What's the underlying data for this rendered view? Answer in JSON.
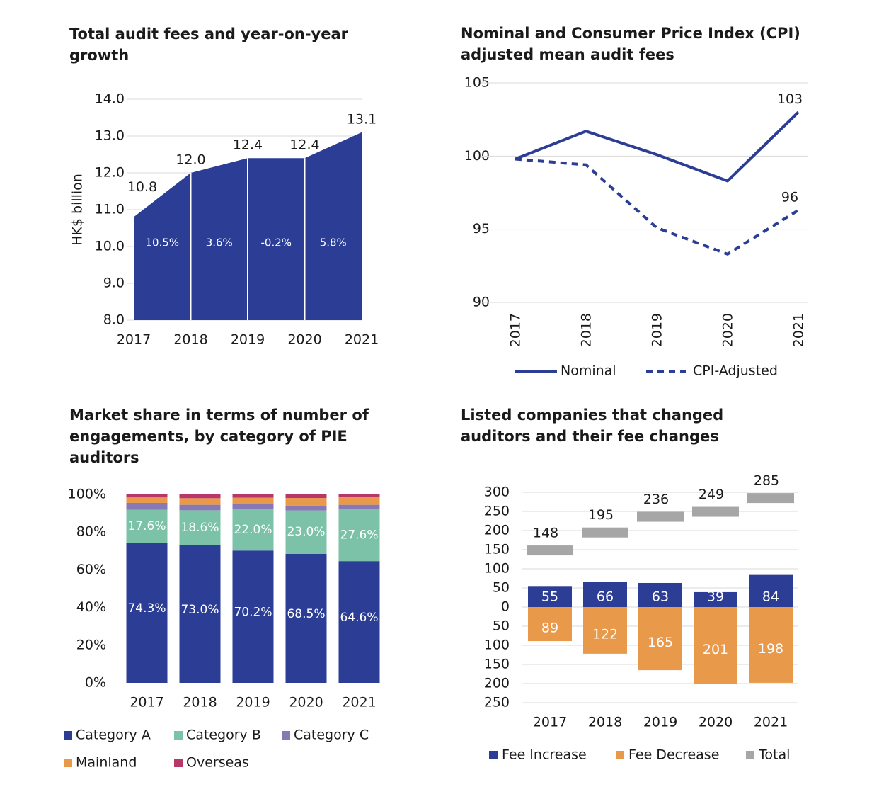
{
  "chart_data": [
    {
      "type": "area",
      "title": "Total audit fees and year-on-year growth",
      "y_label": "HK$ billion",
      "categories": [
        "2017",
        "2018",
        "2019",
        "2020",
        "2021"
      ],
      "values": [
        10.8,
        12,
        12.4,
        12.4,
        13.1
      ],
      "value_labels": [
        "10.8",
        "12.0",
        "12.4",
        "12.4",
        "13.1"
      ],
      "color": "#2b3d94",
      "ylim": [
        8,
        14
      ],
      "yticks": [
        {
          "value": 8,
          "label": "8.0"
        },
        {
          "value": 9,
          "label": "9.0"
        },
        {
          "value": 10,
          "label": "10.0"
        },
        {
          "value": 11,
          "label": "11.0"
        },
        {
          "value": 12,
          "label": "12.0"
        },
        {
          "value": 13,
          "label": "13.0"
        },
        {
          "value": 14,
          "label": "14.0"
        }
      ],
      "grid": true,
      "growth": {
        "values": [
          10.5,
          3.6,
          -0.2,
          5.8
        ],
        "value_labels": [
          "10.5%",
          "3.6%",
          "-0.2%",
          "5.8%"
        ]
      }
    },
    {
      "type": "line",
      "title": "Nominal and Consumer Price Index (CPI) adjusted mean audit fees",
      "categories": [
        "2017",
        "2018",
        "2019",
        "2020",
        "2021"
      ],
      "series": [
        {
          "name": "Nominal",
          "color": "#2b3d94",
          "line_style": "solid",
          "values": [
            99.8,
            101.7,
            100.1,
            98.3,
            103
          ],
          "value_labels": [
            null,
            null,
            null,
            null,
            "103"
          ]
        },
        {
          "name": "CPI-Adjusted",
          "color": "#2b3d94",
          "line_style": "dashed",
          "values": [
            99.8,
            99.4,
            95.1,
            93.3,
            96.3
          ],
          "value_labels": [
            null,
            null,
            null,
            null,
            "96"
          ]
        }
      ],
      "ylim": [
        90,
        105
      ],
      "yticks": [
        90,
        95,
        100,
        105
      ],
      "grid": true,
      "legend": "bottom"
    },
    {
      "type": "stacked_bar",
      "title": "Market share in terms of number of engagements, by category of PIE auditors",
      "categories": [
        "2017",
        "2018",
        "2019",
        "2020",
        "2021"
      ],
      "series": [
        {
          "name": "Category A",
          "color": "#2b3d94",
          "values": [
            74.3,
            73.0,
            70.2,
            68.5,
            64.6
          ],
          "value_labels": [
            "74.3%",
            "73.0%",
            "70.2%",
            "68.5%",
            "64.6%"
          ]
        },
        {
          "name": "Category B",
          "color": "#7bc2a8",
          "values": [
            17.6,
            18.6,
            22.0,
            23.0,
            27.6
          ],
          "value_labels": [
            "17.6%",
            "18.6%",
            "22.0%",
            "23.0%",
            "27.6%"
          ]
        },
        {
          "name": "Category C",
          "color": "#8878b5",
          "values": [
            3.6,
            2.9,
            2.6,
            2.6,
            2.3
          ]
        },
        {
          "name": "Mainland",
          "color": "#e8994a",
          "values": [
            2.9,
            3.5,
            3.5,
            4.0,
            4.0
          ]
        },
        {
          "name": "Overseas",
          "color": "#b8366a",
          "values": [
            1.6,
            2.0,
            1.7,
            1.9,
            1.5
          ]
        }
      ],
      "ylim": [
        0,
        100
      ],
      "yticks": [
        {
          "value": 0,
          "label": "0%"
        },
        {
          "value": 20,
          "label": "20%"
        },
        {
          "value": 40,
          "label": "40%"
        },
        {
          "value": 60,
          "label": "60%"
        },
        {
          "value": 80,
          "label": "80%"
        },
        {
          "value": 100,
          "label": "100%"
        }
      ],
      "grid": false,
      "legend": "bottom"
    },
    {
      "type": "bar",
      "title": "Listed companies that changed auditors and their fee changes",
      "categories": [
        "2017",
        "2018",
        "2019",
        "2020",
        "2021"
      ],
      "series": [
        {
          "name": "Fee Increase",
          "color": "#2b3d94",
          "kind": "bar",
          "values": [
            55,
            66,
            63,
            39,
            84
          ]
        },
        {
          "name": "Fee Decrease",
          "color": "#e8994a",
          "kind": "bar",
          "values": [
            -89,
            -122,
            -165,
            -201,
            -198
          ],
          "value_labels": [
            "89",
            "122",
            "165",
            "201",
            "198"
          ]
        },
        {
          "name": "Total",
          "color": "#a6a6a6",
          "kind": "marker",
          "values": [
            148,
            195,
            236,
            249,
            285
          ]
        }
      ],
      "ylim": [
        -250,
        300
      ],
      "yticks": [
        {
          "value": -250,
          "label": "250"
        },
        {
          "value": -200,
          "label": "200"
        },
        {
          "value": -150,
          "label": "150"
        },
        {
          "value": -100,
          "label": "100"
        },
        {
          "value": -50,
          "label": "50"
        },
        0,
        50,
        100,
        150,
        200,
        250,
        300
      ],
      "grid": true,
      "legend": "bottom"
    }
  ]
}
